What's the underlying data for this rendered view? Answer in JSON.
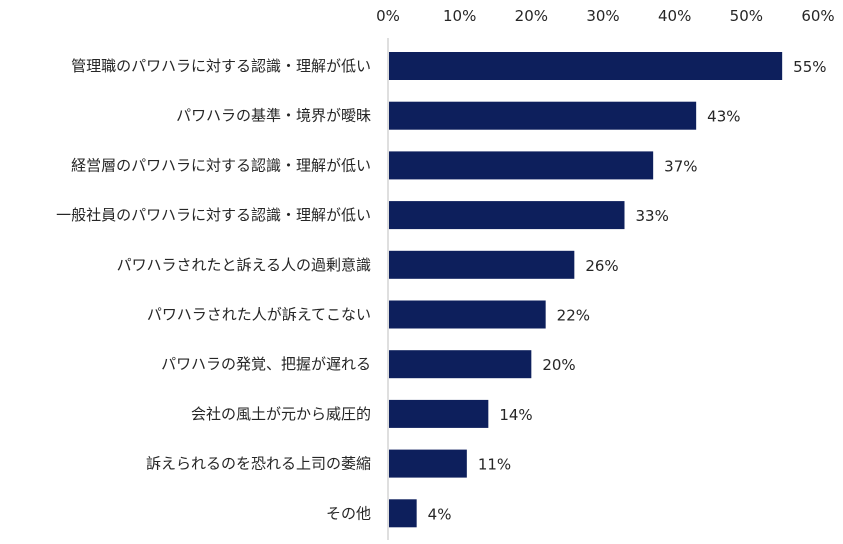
{
  "chart_data": {
    "type": "bar",
    "orientation": "horizontal",
    "categories": [
      "管理職のパワハラに対する認識・理解が低い",
      "パワハラの基準・境界が曖昧",
      "経営層のパワハラに対する認識・理解が低い",
      "一般社員のパワハラに対する認識・理解が低い",
      "パワハラされたと訴える人の過剰意識",
      "パワハラされた人が訴えてこない",
      "パワハラの発覚、把握が遅れる",
      "会社の風土が元から威圧的",
      "訴えられるのを恐れる上司の萎縮",
      "その他"
    ],
    "values": [
      55,
      43,
      37,
      33,
      26,
      22,
      20,
      14,
      11,
      4
    ],
    "value_labels": [
      "55%",
      "43%",
      "37%",
      "33%",
      "26%",
      "22%",
      "20%",
      "14%",
      "11%",
      "4%"
    ],
    "xlim": [
      0,
      60
    ],
    "x_ticks": [
      0,
      10,
      20,
      30,
      40,
      50,
      60
    ],
    "x_tick_labels": [
      "0%",
      "10%",
      "20%",
      "30%",
      "40%",
      "50%",
      "60%"
    ],
    "x_axis_position": "top",
    "grid": false,
    "legend": "none",
    "bar_color": "#0d1f5c",
    "axis_color": "#bfbfbf",
    "text_color": "#262626"
  }
}
